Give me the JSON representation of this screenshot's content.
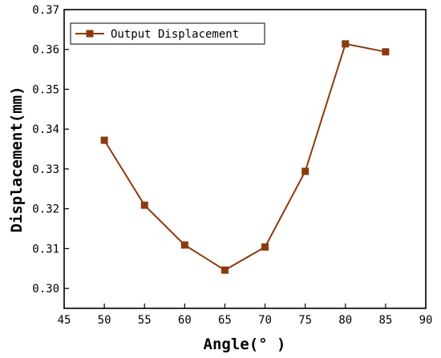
{
  "chart_data": {
    "type": "line",
    "xlabel": "Angle(° )",
    "ylabel": "Displacement(mm)",
    "xlim": [
      45,
      90
    ],
    "ylim": [
      0.295,
      0.37
    ],
    "x_ticks": [
      "45",
      "50",
      "55",
      "60",
      "65",
      "70",
      "75",
      "80",
      "85",
      "90"
    ],
    "y_ticks": [
      "0.30",
      "0.31",
      "0.32",
      "0.33",
      "0.34",
      "0.35",
      "0.36",
      "0.37"
    ],
    "legend_position": "top-left",
    "grid": false,
    "series": [
      {
        "name": "Output Displacement",
        "color": "#8b3a0e",
        "marker": "square",
        "x": [
          50,
          55,
          60,
          65,
          70,
          75,
          80,
          85
        ],
        "values": [
          0.3372,
          0.3209,
          0.3109,
          0.3046,
          0.3104,
          0.3294,
          0.3614,
          0.3594
        ]
      }
    ]
  }
}
